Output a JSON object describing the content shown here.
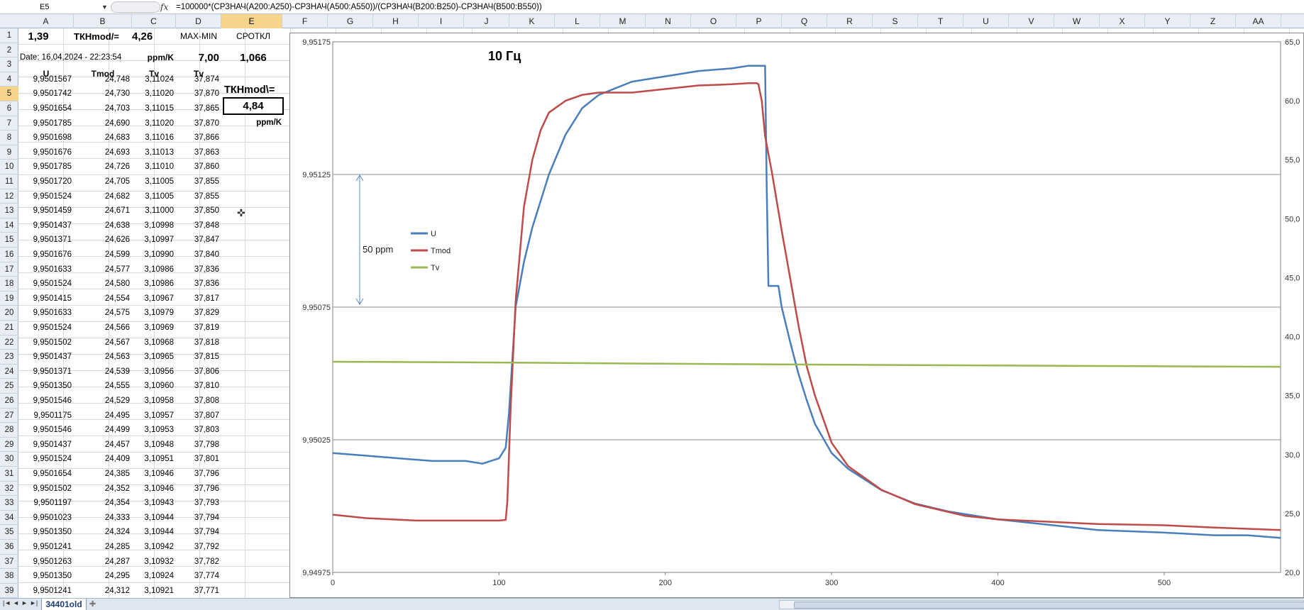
{
  "formula_bar": {
    "name_box": "E5",
    "fx": "fx",
    "formula": "=100000*(СРЗНАЧ(A200:A250)-СРЗНАЧ(A500:A550))/(СРЗНАЧ(B200:B250)-СРЗНАЧ(B500:B550))"
  },
  "columns": [
    "A",
    "B",
    "C",
    "D",
    "E",
    "F",
    "G",
    "H",
    "I",
    "J",
    "K",
    "L",
    "M",
    "N",
    "O",
    "P",
    "Q",
    "R",
    "S",
    "T",
    "U",
    "V",
    "W",
    "X",
    "Y",
    "Z",
    "AA"
  ],
  "rows": [
    "1",
    "2",
    "3",
    "4",
    "5",
    "6",
    "7",
    "8",
    "9",
    "10",
    "11",
    "12",
    "13",
    "14",
    "15",
    "16",
    "17",
    "18",
    "19",
    "20",
    "21",
    "22",
    "23",
    "24",
    "25",
    "26",
    "27",
    "28",
    "29",
    "30",
    "31",
    "32",
    "33",
    "34",
    "35",
    "36",
    "37",
    "38",
    "39"
  ],
  "header_cells": {
    "a1": "1,39",
    "b1": "ТКНmod/=",
    "c1": "4,26",
    "d1": "MAX-MIN",
    "e1": "СРОТКЛ",
    "a2": "Date: 16,04,2024 - 22:23:54",
    "c2": "ppm/K",
    "d2": "7,00",
    "e2": "1,066",
    "a3": "U",
    "b3": "Tmod",
    "c3": "Tv",
    "d3": "Tv",
    "e4": "ТКНmod\\=",
    "e5": "4,84",
    "e6": "ppm/K"
  },
  "table": [
    [
      "9,9501567",
      "24,748",
      "3,11024",
      "37,874"
    ],
    [
      "9,9501742",
      "24,730",
      "3,11020",
      "37,870"
    ],
    [
      "9,9501654",
      "24,703",
      "3,11015",
      "37,865"
    ],
    [
      "9,9501785",
      "24,690",
      "3,11020",
      "37,870"
    ],
    [
      "9,9501698",
      "24,683",
      "3,11016",
      "37,866"
    ],
    [
      "9,9501676",
      "24,693",
      "3,11013",
      "37,863"
    ],
    [
      "9,9501785",
      "24,726",
      "3,11010",
      "37,860"
    ],
    [
      "9,9501720",
      "24,705",
      "3,11005",
      "37,855"
    ],
    [
      "9,9501524",
      "24,682",
      "3,11005",
      "37,855"
    ],
    [
      "9,9501459",
      "24,671",
      "3,11000",
      "37,850"
    ],
    [
      "9,9501437",
      "24,638",
      "3,10998",
      "37,848"
    ],
    [
      "9,9501371",
      "24,626",
      "3,10997",
      "37,847"
    ],
    [
      "9,9501676",
      "24,599",
      "3,10990",
      "37,840"
    ],
    [
      "9,9501633",
      "24,577",
      "3,10986",
      "37,836"
    ],
    [
      "9,9501524",
      "24,580",
      "3,10986",
      "37,836"
    ],
    [
      "9,9501415",
      "24,554",
      "3,10967",
      "37,817"
    ],
    [
      "9,9501633",
      "24,575",
      "3,10979",
      "37,829"
    ],
    [
      "9,9501524",
      "24,566",
      "3,10969",
      "37,819"
    ],
    [
      "9,9501502",
      "24,567",
      "3,10968",
      "37,818"
    ],
    [
      "9,9501437",
      "24,563",
      "3,10965",
      "37,815"
    ],
    [
      "9,9501371",
      "24,539",
      "3,10956",
      "37,806"
    ],
    [
      "9,9501350",
      "24,555",
      "3,10960",
      "37,810"
    ],
    [
      "9,9501546",
      "24,529",
      "3,10958",
      "37,808"
    ],
    [
      "9,9501175",
      "24,495",
      "3,10957",
      "37,807"
    ],
    [
      "9,9501546",
      "24,499",
      "3,10953",
      "37,803"
    ],
    [
      "9,9501437",
      "24,457",
      "3,10948",
      "37,798"
    ],
    [
      "9,9501524",
      "24,409",
      "3,10951",
      "37,801"
    ],
    [
      "9,9501654",
      "24,385",
      "3,10946",
      "37,796"
    ],
    [
      "9,9501502",
      "24,352",
      "3,10946",
      "37,796"
    ],
    [
      "9,9501197",
      "24,354",
      "3,10943",
      "37,793"
    ],
    [
      "9,9501023",
      "24,333",
      "3,10944",
      "37,794"
    ],
    [
      "9,9501350",
      "24,324",
      "3,10944",
      "37,794"
    ],
    [
      "9,9501241",
      "24,285",
      "3,10942",
      "37,792"
    ],
    [
      "9,9501263",
      "24,287",
      "3,10932",
      "37,782"
    ],
    [
      "9,9501350",
      "24,295",
      "3,10924",
      "37,774"
    ],
    [
      "9,9501241",
      "24,312",
      "3,10921",
      "37,771"
    ]
  ],
  "sheet_tab": "34401old",
  "colors": {
    "U": "#4a7ebb",
    "Tmod": "#be4b48",
    "Tv": "#98b954"
  },
  "chart_data": {
    "type": "line",
    "title": "10 Гц",
    "annotation": "50 ppm",
    "grid": true,
    "legend": "left-middle",
    "x_ticks": [
      "0",
      "100",
      "200",
      "300",
      "400",
      "500"
    ],
    "xlim": [
      0,
      570
    ],
    "y_ticks": [
      "9,94975",
      "9,95025",
      "9,95075",
      "9,95125",
      "9,95175"
    ],
    "ylim": [
      9.94975,
      9.95175
    ],
    "y2_ticks": [
      "20,0",
      "25,0",
      "30,0",
      "35,0",
      "40,0",
      "45,0",
      "50,0",
      "55,0",
      "60,0",
      "65,0"
    ],
    "y2lim": [
      20,
      65
    ],
    "series": [
      {
        "name": "U",
        "axis": "left",
        "x": [
          0,
          20,
          40,
          60,
          80,
          90,
          100,
          104,
          106,
          108,
          110,
          115,
          120,
          125,
          130,
          140,
          150,
          160,
          180,
          200,
          220,
          240,
          250,
          258,
          259,
          260,
          261,
          262,
          265,
          268,
          270,
          275,
          280,
          285,
          290,
          300,
          310,
          320,
          330,
          350,
          370,
          400,
          430,
          460,
          500,
          530,
          550,
          570
        ],
        "y": [
          9.9502,
          9.95019,
          9.95018,
          9.95017,
          9.95017,
          9.95016,
          9.95018,
          9.95022,
          9.95035,
          9.95055,
          9.95075,
          9.95092,
          9.95105,
          9.95115,
          9.95125,
          9.9514,
          9.9515,
          9.95155,
          9.9516,
          9.95162,
          9.95164,
          9.95165,
          9.95166,
          9.95166,
          9.95166,
          9.95166,
          9.9512,
          9.95083,
          9.95083,
          9.95083,
          9.95075,
          9.95062,
          9.9505,
          9.9504,
          9.95031,
          9.9502,
          9.95014,
          9.9501,
          9.95006,
          9.95001,
          9.94998,
          9.94995,
          9.94993,
          9.94991,
          9.9499,
          9.94989,
          9.94989,
          9.94988
        ]
      },
      {
        "name": "Tmod",
        "axis": "right",
        "x": [
          0,
          20,
          50,
          80,
          100,
          104,
          105,
          107,
          110,
          115,
          120,
          125,
          130,
          140,
          150,
          160,
          180,
          200,
          220,
          240,
          250,
          255,
          256,
          258,
          260,
          264,
          270,
          275,
          280,
          285,
          290,
          300,
          310,
          330,
          350,
          380,
          400,
          430,
          460,
          500,
          530,
          550,
          570
        ],
        "y": [
          24.9,
          24.6,
          24.4,
          24.4,
          24.4,
          24.45,
          26,
          34,
          43,
          51,
          55,
          57.5,
          59,
          60,
          60.5,
          60.7,
          60.7,
          61,
          61.3,
          61.4,
          61.5,
          61.5,
          61.4,
          60,
          57,
          54,
          49,
          45,
          41,
          37.5,
          35,
          31,
          29,
          27,
          25.8,
          24.8,
          24.5,
          24.3,
          24.1,
          24,
          23.8,
          23.7,
          23.6
        ]
      },
      {
        "name": "Tv",
        "axis": "right",
        "x": [
          0,
          100,
          200,
          300,
          400,
          500,
          570
        ],
        "y": [
          37.87,
          37.8,
          37.7,
          37.62,
          37.55,
          37.48,
          37.44
        ]
      }
    ]
  }
}
